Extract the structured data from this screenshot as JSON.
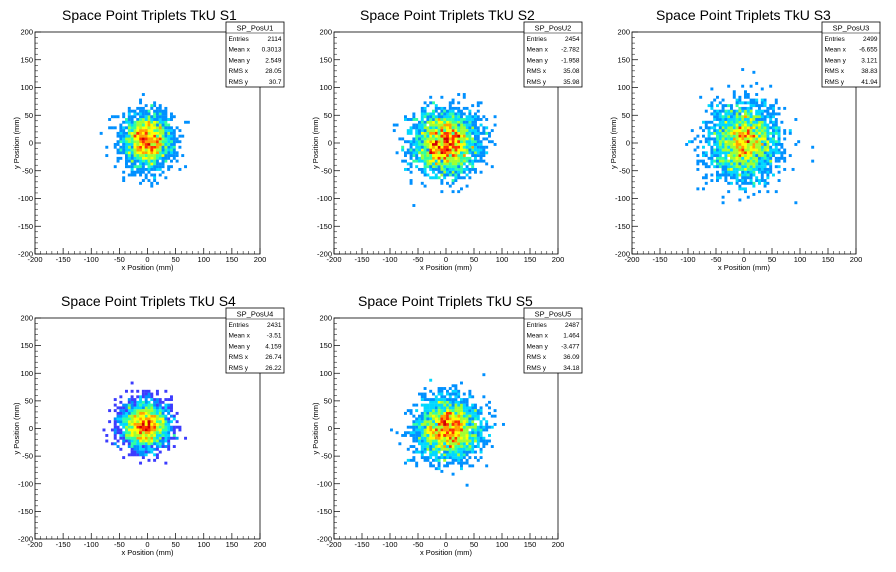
{
  "chart_data": [
    {
      "type": "heatmap",
      "title": "Space Point Triplets TkU S1",
      "xlabel": "x Position (mm)",
      "ylabel": "y Position (mm)",
      "xlim": [
        -200,
        200
      ],
      "ylim": [
        -200,
        200
      ],
      "xticks": [
        "-200",
        "-150",
        "-100",
        "-50",
        "0",
        "50",
        "100",
        "150",
        "200"
      ],
      "yticks": [
        "-200",
        "-150",
        "-100",
        "-50",
        "0",
        "50",
        "100",
        "150",
        "200"
      ],
      "stats": {
        "name": "SP_PosU1",
        "rows": [
          {
            "label": "Entries",
            "value": "2114"
          },
          {
            "label": "Mean x",
            "value": "0.3013"
          },
          {
            "label": "Mean y",
            "value": "2.549"
          },
          {
            "label": "RMS x",
            "value": "28.05"
          },
          {
            "label": "RMS y",
            "value": "30.7"
          }
        ]
      },
      "center": [
        0,
        5
      ],
      "spread": [
        28.05,
        30.7
      ],
      "entries": 2114
    },
    {
      "type": "heatmap",
      "title": "Space Point Triplets TkU S2",
      "xlabel": "x Position (mm)",
      "ylabel": "y Position (mm)",
      "xlim": [
        -200,
        200
      ],
      "ylim": [
        -200,
        200
      ],
      "xticks": [
        "-200",
        "-150",
        "-100",
        "-50",
        "0",
        "50",
        "100",
        "150",
        "200"
      ],
      "yticks": [
        "-200",
        "-150",
        "-100",
        "-50",
        "0",
        "50",
        "100",
        "150",
        "200"
      ],
      "stats": {
        "name": "SP_PosU2",
        "rows": [
          {
            "label": "Entries",
            "value": "2454"
          },
          {
            "label": "Mean x",
            "value": "-2.782"
          },
          {
            "label": "Mean y",
            "value": "-1.958"
          },
          {
            "label": "RMS x",
            "value": "35.08"
          },
          {
            "label": "RMS y",
            "value": "35.98"
          }
        ]
      },
      "center": [
        0,
        0
      ],
      "spread": [
        35.08,
        35.98
      ],
      "entries": 2454
    },
    {
      "type": "heatmap",
      "title": "Space Point Triplets TkU S3",
      "xlabel": "x Position (mm)",
      "ylabel": "y Position (mm)",
      "xlim": [
        -200,
        200
      ],
      "ylim": [
        -200,
        200
      ],
      "xticks": [
        "-200",
        "-150",
        "-100",
        "-50",
        "0",
        "50",
        "100",
        "150",
        "200"
      ],
      "yticks": [
        "-200",
        "-150",
        "-100",
        "-50",
        "0",
        "50",
        "100",
        "150",
        "200"
      ],
      "stats": {
        "name": "SP_PosU3",
        "rows": [
          {
            "label": "Entries",
            "value": "2499"
          },
          {
            "label": "Mean x",
            "value": "-6.655"
          },
          {
            "label": "Mean y",
            "value": "3.121"
          },
          {
            "label": "RMS x",
            "value": "38.83"
          },
          {
            "label": "RMS y",
            "value": "41.94"
          }
        ]
      },
      "center": [
        0,
        0
      ],
      "spread": [
        38.83,
        41.94
      ],
      "entries": 2499
    },
    {
      "type": "heatmap",
      "title": "Space Point Triplets TkU S4",
      "xlabel": "x Position (mm)",
      "ylabel": "y Position (mm)",
      "xlim": [
        -200,
        200
      ],
      "ylim": [
        -200,
        200
      ],
      "xticks": [
        "-200",
        "-150",
        "-100",
        "-50",
        "0",
        "50",
        "100",
        "150",
        "200"
      ],
      "yticks": [
        "-200",
        "-150",
        "-100",
        "-50",
        "0",
        "50",
        "100",
        "150",
        "200"
      ],
      "stats": {
        "name": "SP_PosU4",
        "rows": [
          {
            "label": "Entries",
            "value": "2431"
          },
          {
            "label": "Mean x",
            "value": "-3.51"
          },
          {
            "label": "Mean y",
            "value": "4.159"
          },
          {
            "label": "RMS x",
            "value": "26.74"
          },
          {
            "label": "RMS y",
            "value": "26.22"
          }
        ]
      },
      "center": [
        -5,
        5
      ],
      "spread": [
        26.74,
        26.22
      ],
      "entries": 2431
    },
    {
      "type": "heatmap",
      "title": "Space Point Triplets TkU S5",
      "xlabel": "x Position (mm)",
      "ylabel": "y Position (mm)",
      "xlim": [
        -200,
        200
      ],
      "ylim": [
        -200,
        200
      ],
      "xticks": [
        "-200",
        "-150",
        "-100",
        "-50",
        "0",
        "50",
        "100",
        "150",
        "200"
      ],
      "yticks": [
        "-200",
        "-150",
        "-100",
        "-50",
        "0",
        "50",
        "100",
        "150",
        "200"
      ],
      "stats": {
        "name": "SP_PosU5",
        "rows": [
          {
            "label": "Entries",
            "value": "2487"
          },
          {
            "label": "Mean x",
            "value": "1.464"
          },
          {
            "label": "Mean y",
            "value": "-3.477"
          },
          {
            "label": "RMS x",
            "value": "36.09"
          },
          {
            "label": "RMS y",
            "value": "34.18"
          }
        ]
      },
      "center": [
        5,
        0
      ],
      "spread": [
        36.09,
        34.18
      ],
      "entries": 2487
    }
  ],
  "colors": {
    "palette": [
      "#7000ff",
      "#3c3cff",
      "#0090ff",
      "#00d8ff",
      "#30ffa0",
      "#a0ff30",
      "#ffff00",
      "#ffa000",
      "#ff3000",
      "#d00000"
    ],
    "frame": "#000000"
  }
}
